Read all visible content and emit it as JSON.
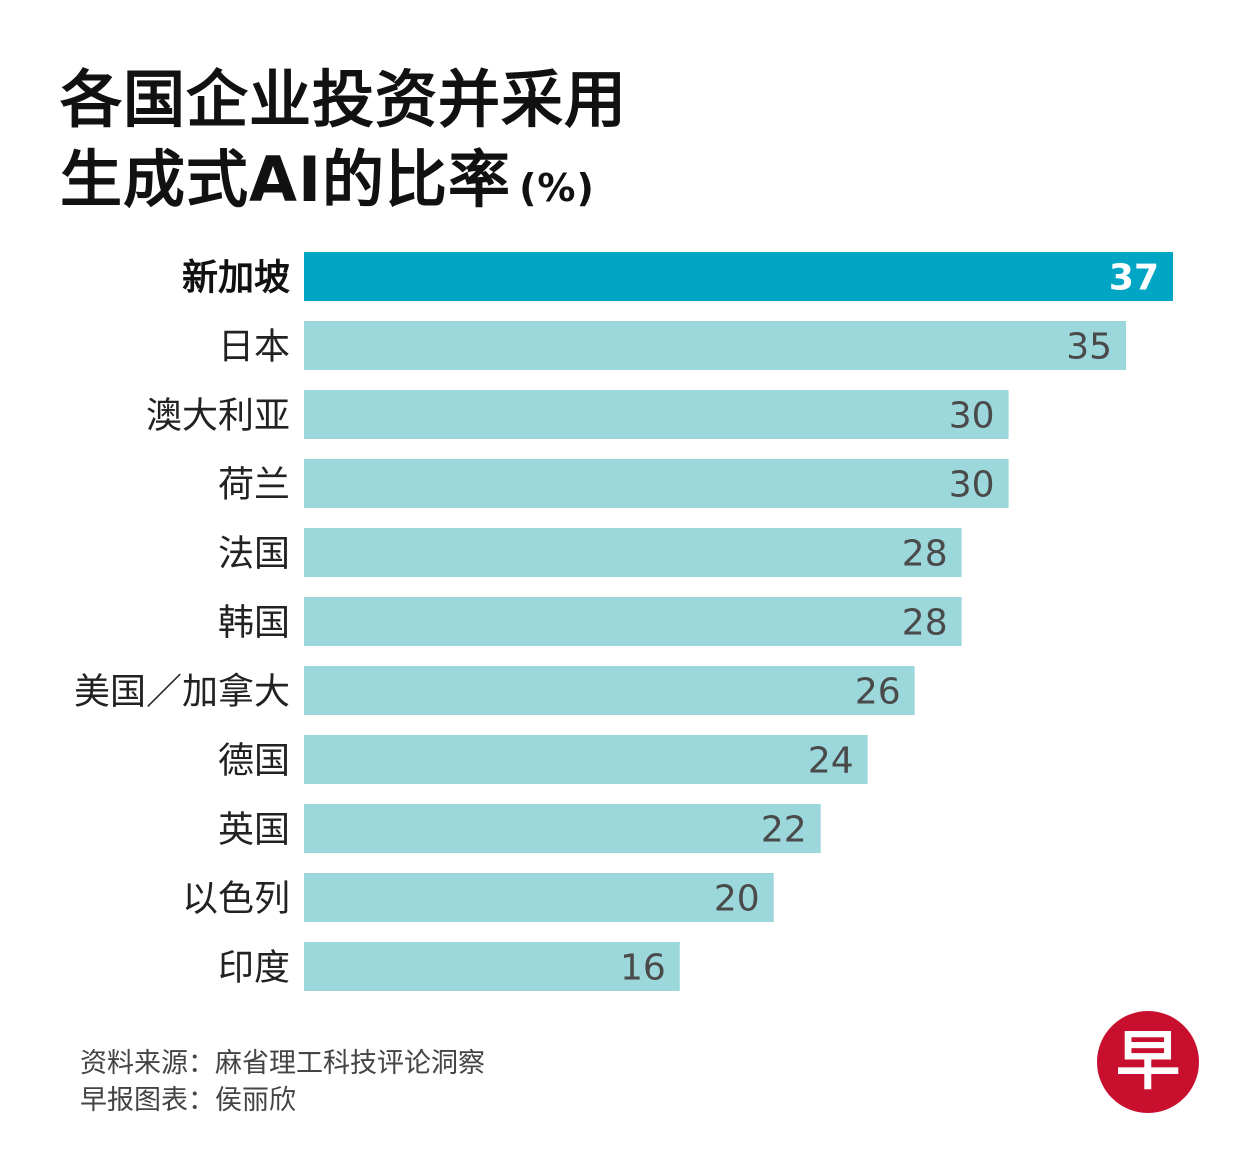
{
  "title": {
    "line1": "各国企业投资并采用",
    "line2": "生成式AI的比率",
    "unit": "(%)"
  },
  "chart_data": {
    "type": "bar",
    "orientation": "horizontal",
    "title": "各国企业投资并采用生成式AI的比率(%)",
    "categories": [
      "新加坡",
      "日本",
      "澳大利亚",
      "荷兰",
      "法国",
      "韩国",
      "美国／加拿大",
      "德国",
      "英国",
      "以色列",
      "印度"
    ],
    "values": [
      37,
      35,
      30,
      30,
      28,
      28,
      26,
      24,
      22,
      20,
      16
    ],
    "highlight": "新加坡",
    "colors": {
      "highlight_bar": "#00a6c4",
      "bar": "#9bd7db",
      "highlight_label": "#ffffff",
      "label": "#4a4a4a"
    },
    "xlim": [
      0,
      37
    ],
    "grid": false,
    "legend": "none"
  },
  "footer": {
    "source": "资料来源：麻省理工科技评论洞察",
    "credit": "早报图表：侯丽欣"
  },
  "logo": {
    "text": "早",
    "color": "#c8102e"
  }
}
